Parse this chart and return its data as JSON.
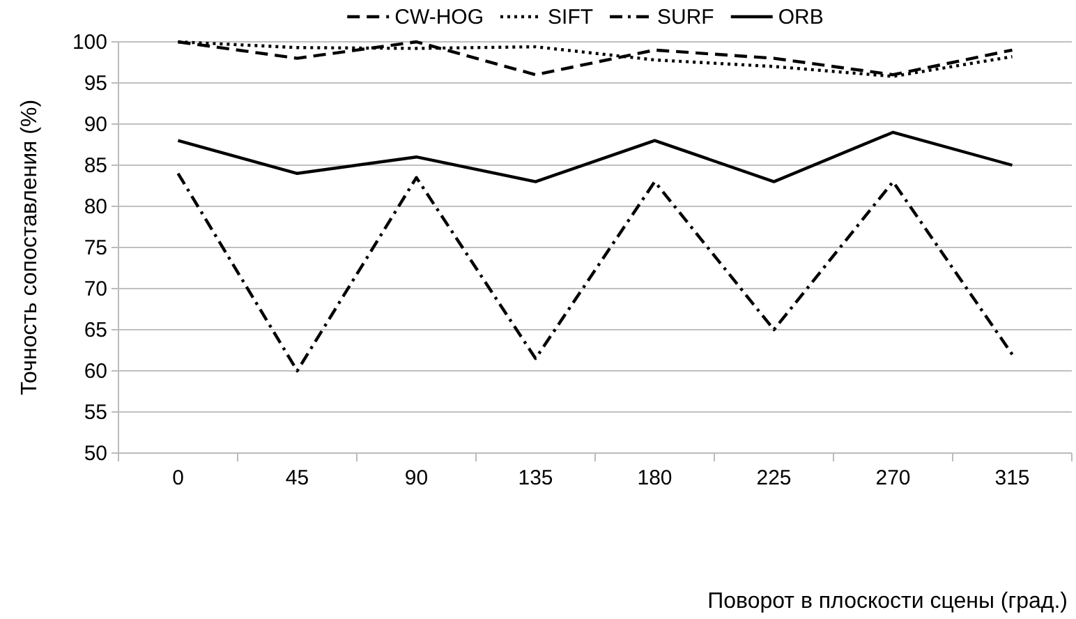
{
  "chart_data": {
    "type": "line",
    "xlabel": "Поворот в плоскости сцены   (град.)",
    "ylabel": "Точность сопоставления    (%)",
    "categories": [
      "0",
      "45",
      "90",
      "135",
      "180",
      "225",
      "270",
      "315"
    ],
    "series": [
      {
        "name": "CW-HOG",
        "color": "#000000",
        "line_style": "dashed",
        "values": [
          100,
          98,
          100,
          96,
          99,
          98,
          96,
          99
        ]
      },
      {
        "name": "SIFT",
        "color": "#000000",
        "line_style": "dotted",
        "values": [
          100,
          99.3,
          99.2,
          99.4,
          97.8,
          97,
          95.8,
          98.2
        ]
      },
      {
        "name": "SURF",
        "color": "#000000",
        "line_style": "dashdot",
        "values": [
          84,
          60,
          83.5,
          61.5,
          83,
          65,
          83,
          62
        ]
      },
      {
        "name": "ORB",
        "color": "#000000",
        "line_style": "solid",
        "values": [
          88,
          84,
          86,
          83,
          88,
          83,
          89,
          85
        ]
      }
    ],
    "ylim": [
      50,
      100
    ],
    "yticks": [
      50,
      55,
      60,
      65,
      70,
      75,
      80,
      85,
      90,
      95,
      100
    ],
    "grid": "y",
    "legend": "top",
    "marker": "none"
  }
}
